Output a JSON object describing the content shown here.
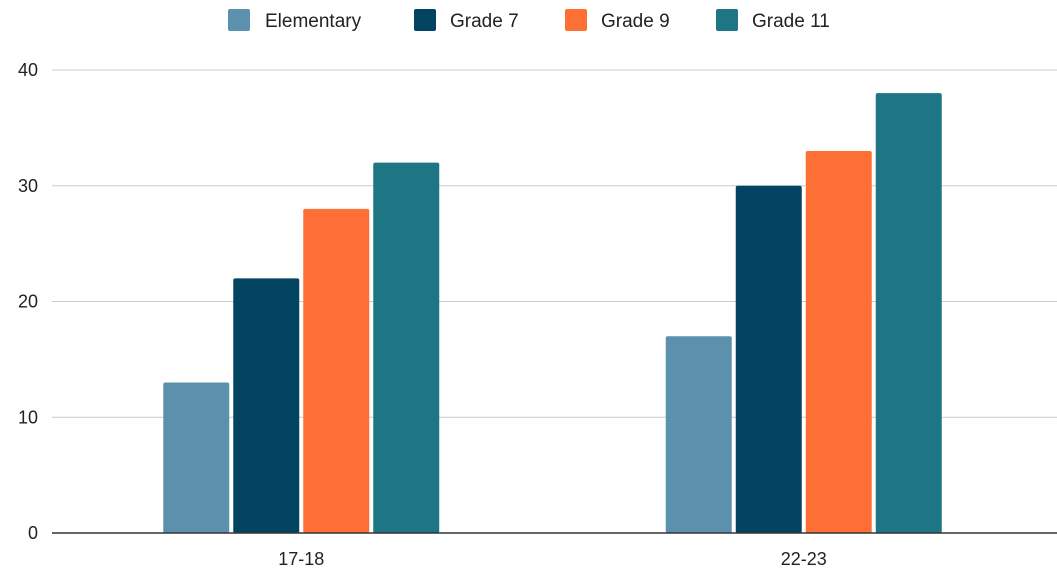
{
  "chart_data": {
    "type": "bar",
    "title": "",
    "xlabel": "",
    "ylabel": "",
    "categories": [
      "17-18",
      "22-23"
    ],
    "series": [
      {
        "name": "Elementary",
        "values": [
          13,
          17
        ],
        "color": "#5b91ad"
      },
      {
        "name": "Grade 7",
        "values": [
          22,
          30
        ],
        "color": "#034560"
      },
      {
        "name": "Grade 9",
        "values": [
          28,
          33
        ],
        "color": "#fe6f35"
      },
      {
        "name": "Grade 11",
        "values": [
          32,
          38
        ],
        "color": "#1e7584"
      }
    ],
    "ylim": [
      0,
      40
    ],
    "yticks": [
      "0",
      "10",
      "20",
      "30",
      "40"
    ],
    "grid": true,
    "legend_position": "top-center",
    "gridline_color": "#cccccc",
    "axis_color": "#333333"
  }
}
